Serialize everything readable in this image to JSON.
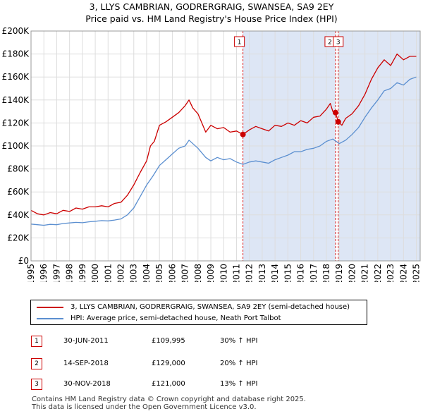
{
  "title_line1": "3, LLYS CAMBRIAN, GODRERGRAIG, SWANSEA, SA9 2EY",
  "title_line2": "Price paid vs. HM Land Registry's House Price Index (HPI)",
  "colors": {
    "property": "#cc0000",
    "hpi": "#5b8fd0",
    "shade": "#dde6f5",
    "grid": "#dddddd",
    "vline": "#dd2222"
  },
  "chart_data": {
    "type": "line",
    "title": "Price paid vs. HM Land Registry's House Price Index (HPI)",
    "xlim": [
      1995,
      2025.3
    ],
    "ylim": [
      0,
      200000
    ],
    "y_ticks": [
      0,
      20000,
      40000,
      60000,
      80000,
      100000,
      120000,
      140000,
      160000,
      180000,
      200000
    ],
    "y_tick_labels": [
      "£0",
      "£20K",
      "£40K",
      "£60K",
      "£80K",
      "£100K",
      "£120K",
      "£140K",
      "£160K",
      "£180K",
      "£200K"
    ],
    "x_ticks": [
      1995,
      1996,
      1997,
      1998,
      1999,
      2000,
      2001,
      2002,
      2003,
      2004,
      2005,
      2006,
      2007,
      2008,
      2009,
      2010,
      2011,
      2012,
      2013,
      2014,
      2015,
      2016,
      2017,
      2018,
      2019,
      2020,
      2021,
      2022,
      2023,
      2024,
      2025
    ],
    "x_tick_labels": [
      "1995",
      "1996",
      "1997",
      "1998",
      "1999",
      "2000",
      "2001",
      "2002",
      "2003",
      "2004",
      "2005",
      "2006",
      "2007",
      "2008",
      "2009",
      "2010",
      "2011",
      "2012",
      "2013",
      "2014",
      "2015",
      "2016",
      "2017",
      "2018",
      "2019",
      "2020",
      "2021",
      "2022",
      "2023",
      "2024",
      "2025"
    ],
    "shaded_ranges": [
      [
        2011.5,
        2018.7
      ],
      [
        2018.92,
        2025.3
      ]
    ],
    "series": [
      {
        "name": "3, LLYS CAMBRIAN, GODRERGRAIG, SWANSEA, SA9 2EY (semi-detached house)",
        "x": [
          1995,
          1995.5,
          1996,
          1996.5,
          1997,
          1997.5,
          1998,
          1998.5,
          1999,
          1999.5,
          2000,
          2000.5,
          2001,
          2001.5,
          2002,
          2002.5,
          2003,
          2003.5,
          2004,
          2004.3,
          2004.6,
          2005,
          2005.5,
          2006,
          2006.5,
          2007,
          2007.3,
          2007.6,
          2008,
          2008.3,
          2008.6,
          2009,
          2009.5,
          2010,
          2010.5,
          2011,
          2011.5,
          2012,
          2012.5,
          2013,
          2013.5,
          2014,
          2014.5,
          2015,
          2015.5,
          2016,
          2016.5,
          2017,
          2017.5,
          2018,
          2018.3,
          2018.5,
          2018.71,
          2018.92,
          2019.2,
          2019.5,
          2020,
          2020.5,
          2021,
          2021.5,
          2022,
          2022.5,
          2023,
          2023.5,
          2024,
          2024.5,
          2025
        ],
        "values": [
          44000,
          41000,
          40000,
          42000,
          41000,
          44000,
          43000,
          46000,
          45000,
          47000,
          47000,
          48000,
          47000,
          50000,
          51000,
          57000,
          66000,
          77000,
          87000,
          100000,
          104000,
          118000,
          121000,
          125000,
          129000,
          135000,
          140000,
          133000,
          128000,
          120000,
          112000,
          118000,
          115000,
          116000,
          112000,
          113000,
          110000,
          114000,
          117000,
          115000,
          113000,
          118000,
          117000,
          120000,
          118000,
          122000,
          120000,
          125000,
          126000,
          132000,
          137000,
          130000,
          129000,
          121000,
          118000,
          124000,
          128000,
          135000,
          145000,
          158000,
          168000,
          175000,
          170000,
          180000,
          175000,
          178000,
          178000
        ]
      },
      {
        "name": "HPI: Average price, semi-detached house, Neath Port Talbot",
        "x": [
          1995,
          1995.5,
          1996,
          1996.5,
          1997,
          1997.5,
          1998,
          1998.5,
          1999,
          1999.5,
          2000,
          2000.5,
          2001,
          2001.5,
          2002,
          2002.5,
          2003,
          2003.5,
          2004,
          2004.5,
          2005,
          2005.5,
          2006,
          2006.5,
          2007,
          2007.3,
          2007.6,
          2008,
          2008.3,
          2008.6,
          2009,
          2009.5,
          2010,
          2010.5,
          2011,
          2011.5,
          2012,
          2012.5,
          2013,
          2013.5,
          2014,
          2014.5,
          2015,
          2015.5,
          2016,
          2016.5,
          2017,
          2017.5,
          2018,
          2018.5,
          2019,
          2019.5,
          2020,
          2020.5,
          2021,
          2021.5,
          2022,
          2022.5,
          2023,
          2023.5,
          2024,
          2024.5,
          2025
        ],
        "values": [
          32000,
          31500,
          31000,
          31800,
          31500,
          32500,
          33000,
          33500,
          33200,
          34000,
          34500,
          35000,
          34800,
          35500,
          36500,
          40000,
          46000,
          56000,
          66000,
          74000,
          83000,
          88000,
          93000,
          98000,
          100000,
          105000,
          102000,
          98000,
          94000,
          90000,
          87000,
          90000,
          88000,
          89000,
          86000,
          84000,
          86000,
          87000,
          86000,
          85000,
          88000,
          90000,
          92000,
          95000,
          95000,
          97000,
          98000,
          100000,
          104000,
          106000,
          102000,
          105000,
          110000,
          116000,
          125000,
          133000,
          140000,
          148000,
          150000,
          155000,
          153000,
          158000,
          160000
        ]
      }
    ],
    "markers": [
      {
        "label": "1",
        "x": 2011.5,
        "y": 109995
      },
      {
        "label": "2",
        "x": 2018.71,
        "y": 129000
      },
      {
        "label": "3",
        "x": 2018.92,
        "y": 121000
      }
    ]
  },
  "legend": {
    "property_label": "3, LLYS CAMBRIAN, GODRERGRAIG, SWANSEA, SA9 2EY (semi-detached house)",
    "hpi_label": "HPI: Average price, semi-detached house, Neath Port Talbot"
  },
  "sales": [
    {
      "num": "1",
      "date": "30-JUN-2011",
      "price": "£109,995",
      "hpi": "30% ↑ HPI"
    },
    {
      "num": "2",
      "date": "14-SEP-2018",
      "price": "£129,000",
      "hpi": "20% ↑ HPI"
    },
    {
      "num": "3",
      "date": "30-NOV-2018",
      "price": "£121,000",
      "hpi": "13% ↑ HPI"
    }
  ],
  "footer": {
    "line1": "Contains HM Land Registry data © Crown copyright and database right 2025.",
    "line2": "This data is licensed under the Open Government Licence v3.0."
  }
}
